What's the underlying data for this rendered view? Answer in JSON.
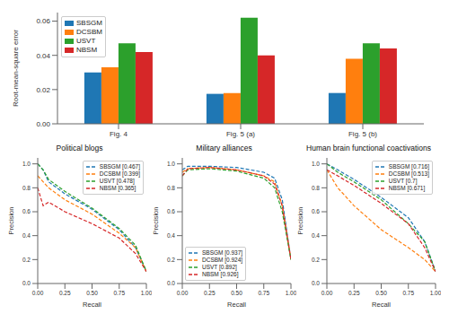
{
  "chart_data": [
    {
      "type": "bar",
      "ylabel": "Root-mean-square error",
      "categories": [
        "Fig. 4",
        "Fig. 5 (a)",
        "Fig. 5 (b)"
      ],
      "ylim": [
        0,
        0.065
      ],
      "yticks": [
        {
          "value": 0,
          "label": "0.00"
        },
        {
          "value": 0.02,
          "label": "0.02"
        },
        {
          "value": 0.04,
          "label": "0.04"
        },
        {
          "value": 0.06,
          "label": "0.06"
        }
      ],
      "legend": "upper left",
      "grid": false,
      "series": [
        {
          "name": "SBSGM",
          "color": "#1f77b4",
          "values": [
            0.03,
            0.0175,
            0.018
          ]
        },
        {
          "name": "DCSBM",
          "color": "#ff7f0e",
          "values": [
            0.033,
            0.018,
            0.038
          ]
        },
        {
          "name": "USVT",
          "color": "#2ca02c",
          "values": [
            0.047,
            0.062,
            0.047
          ]
        },
        {
          "name": "NBSM",
          "color": "#d62728",
          "values": [
            0.042,
            0.04,
            0.044
          ]
        }
      ]
    },
    {
      "type": "line",
      "title": "Political blogs",
      "xlabel": "Recall",
      "ylabel": "Precision",
      "x": [
        0,
        0.05,
        0.1,
        0.25,
        0.5,
        0.75,
        0.9,
        1.0
      ],
      "xlim": [
        0,
        1
      ],
      "xticks": [
        {
          "value": 0,
          "label": "0.00"
        },
        {
          "value": 0.25,
          "label": "0.25"
        },
        {
          "value": 0.5,
          "label": "0.50"
        },
        {
          "value": 0.75,
          "label": "0.75"
        },
        {
          "value": 1,
          "label": "1.00"
        }
      ],
      "ylim": [
        0,
        1.05
      ],
      "yticks": [
        {
          "value": 0,
          "label": "0.0"
        },
        {
          "value": 0.2,
          "label": "0.2"
        },
        {
          "value": 0.4,
          "label": "0.4"
        },
        {
          "value": 0.6,
          "label": "0.6"
        },
        {
          "value": 0.8,
          "label": "0.8"
        },
        {
          "value": 1,
          "label": "1.0"
        }
      ],
      "legend": "upper right",
      "grid": false,
      "series": [
        {
          "name": "SBSGM [0.467]",
          "color": "#1f77b4",
          "line_style": "dashed",
          "values": [
            1.0,
            0.95,
            0.85,
            0.75,
            0.62,
            0.45,
            0.3,
            0.1
          ]
        },
        {
          "name": "DCSBM [0.399]",
          "color": "#ff7f0e",
          "line_style": "dashed",
          "values": [
            0.9,
            0.85,
            0.8,
            0.7,
            0.58,
            0.42,
            0.3,
            0.1
          ]
        },
        {
          "name": "USVT [0.478]",
          "color": "#2ca02c",
          "line_style": "dashed",
          "values": [
            1.0,
            0.95,
            0.87,
            0.77,
            0.63,
            0.46,
            0.32,
            0.1
          ]
        },
        {
          "name": "NBSM [0.365]",
          "color": "#d62728",
          "line_style": "dashed",
          "values": [
            0.8,
            0.65,
            0.68,
            0.6,
            0.5,
            0.38,
            0.25,
            0.1
          ]
        }
      ]
    },
    {
      "type": "line",
      "title": "Military alliances",
      "xlabel": "Recall",
      "ylabel": "Precision",
      "x": [
        0,
        0.05,
        0.25,
        0.5,
        0.75,
        0.85,
        0.92,
        1.0
      ],
      "xlim": [
        0,
        1
      ],
      "xticks": [
        {
          "value": 0,
          "label": "0.00"
        },
        {
          "value": 0.25,
          "label": "0.25"
        },
        {
          "value": 0.5,
          "label": "0.50"
        },
        {
          "value": 0.75,
          "label": "0.75"
        },
        {
          "value": 1,
          "label": "1.00"
        }
      ],
      "ylim": [
        0,
        1.05
      ],
      "yticks": [
        {
          "value": 0,
          "label": "0.0"
        },
        {
          "value": 0.2,
          "label": "0.2"
        },
        {
          "value": 0.4,
          "label": "0.4"
        },
        {
          "value": 0.6,
          "label": "0.6"
        },
        {
          "value": 0.8,
          "label": "0.8"
        },
        {
          "value": 1,
          "label": "1.0"
        }
      ],
      "legend": "lower left",
      "grid": false,
      "series": [
        {
          "name": "SBSGM [0.937]",
          "color": "#1f77b4",
          "line_style": "dashed",
          "values": [
            0.95,
            0.98,
            0.98,
            0.97,
            0.93,
            0.88,
            0.7,
            0.2
          ]
        },
        {
          "name": "DCSBM [0.924]",
          "color": "#ff7f0e",
          "line_style": "dashed",
          "values": [
            0.93,
            0.96,
            0.97,
            0.95,
            0.9,
            0.85,
            0.65,
            0.2
          ]
        },
        {
          "name": "USVT [0.892]",
          "color": "#2ca02c",
          "line_style": "dashed",
          "values": [
            0.9,
            0.95,
            0.96,
            0.94,
            0.88,
            0.8,
            0.6,
            0.2
          ]
        },
        {
          "name": "NBSM [0.926]",
          "color": "#d62728",
          "line_style": "dashed",
          "values": [
            0.9,
            0.96,
            0.97,
            0.95,
            0.9,
            0.83,
            0.65,
            0.2
          ]
        }
      ]
    },
    {
      "type": "line",
      "title": "Human brain functional coactivations",
      "xlabel": "Recall",
      "ylabel": "Precision",
      "x": [
        0,
        0.1,
        0.25,
        0.5,
        0.75,
        0.9,
        1.0
      ],
      "xlim": [
        0,
        1
      ],
      "xticks": [
        {
          "value": 0,
          "label": "0.00"
        },
        {
          "value": 0.25,
          "label": "0.25"
        },
        {
          "value": 0.5,
          "label": "0.50"
        },
        {
          "value": 0.75,
          "label": "0.75"
        },
        {
          "value": 1,
          "label": "1.00"
        }
      ],
      "ylim": [
        0,
        1.05
      ],
      "yticks": [
        {
          "value": 0,
          "label": "0.0"
        },
        {
          "value": 0.2,
          "label": "0.2"
        },
        {
          "value": 0.4,
          "label": "0.4"
        },
        {
          "value": 0.6,
          "label": "0.6"
        },
        {
          "value": 0.8,
          "label": "0.8"
        },
        {
          "value": 1,
          "label": "1.0"
        }
      ],
      "legend": "upper right",
      "grid": false,
      "series": [
        {
          "name": "SBSGM [0.716]",
          "color": "#1f77b4",
          "line_style": "dashed",
          "values": [
            1.0,
            0.95,
            0.87,
            0.72,
            0.55,
            0.35,
            0.1
          ]
        },
        {
          "name": "DCSBM [0.513]",
          "color": "#ff7f0e",
          "line_style": "dashed",
          "values": [
            0.95,
            0.8,
            0.65,
            0.45,
            0.3,
            0.2,
            0.1
          ]
        },
        {
          "name": "USVT [0.7]",
          "color": "#2ca02c",
          "line_style": "dashed",
          "values": [
            1.0,
            0.93,
            0.85,
            0.7,
            0.5,
            0.35,
            0.1
          ]
        },
        {
          "name": "NBSM [0.671]",
          "color": "#d62728",
          "line_style": "dashed",
          "values": [
            0.95,
            0.9,
            0.82,
            0.67,
            0.5,
            0.3,
            0.1
          ]
        }
      ]
    }
  ]
}
